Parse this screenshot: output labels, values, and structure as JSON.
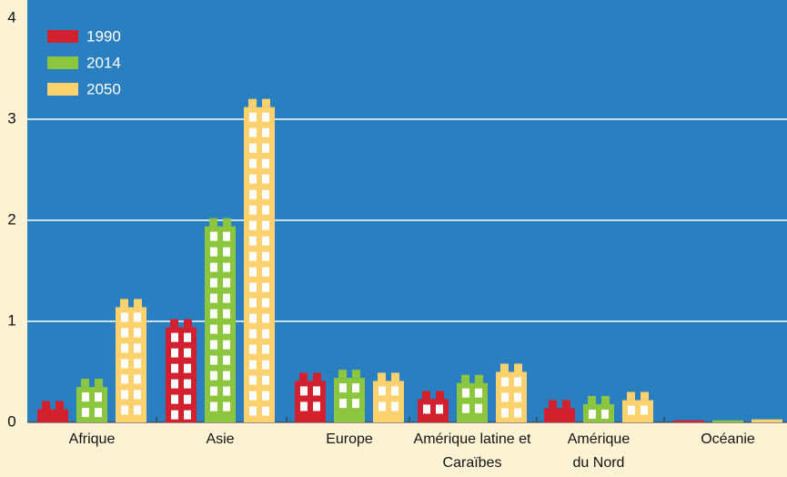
{
  "chart_data": {
    "type": "bar",
    "categories": [
      "Afrique",
      "Asie",
      "Europe",
      "Amérique latine et Caraïbes",
      "Amérique du Nord",
      "Océanie"
    ],
    "series": [
      {
        "name": "1990",
        "color": "#d2202f",
        "values": [
          0.13,
          0.94,
          0.41,
          0.23,
          0.14,
          0.02
        ]
      },
      {
        "name": "2014",
        "color": "#8cc63f",
        "values": [
          0.35,
          1.94,
          0.44,
          0.39,
          0.18,
          0.02
        ]
      },
      {
        "name": "2050",
        "color": "#fdd26e",
        "values": [
          1.14,
          3.12,
          0.41,
          0.5,
          0.22,
          0.03
        ]
      }
    ],
    "ylim": [
      0,
      4
    ],
    "yticks": [
      0,
      1,
      2,
      3,
      4
    ],
    "grid": true,
    "legend": "top-left"
  }
}
